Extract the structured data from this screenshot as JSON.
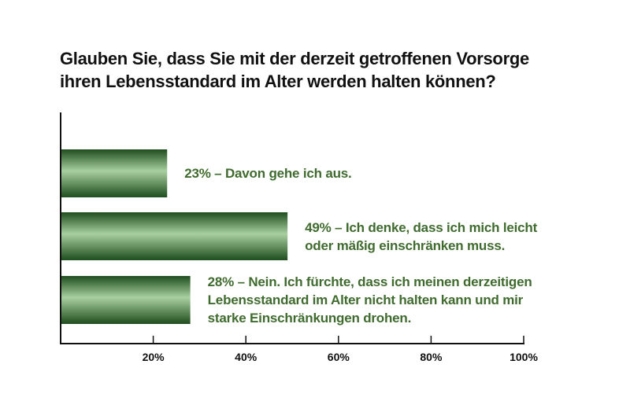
{
  "title_lines": [
    "Glauben Sie, dass Sie mit der derzeit getroffenen Vorsorge",
    "ihren Lebensstandard im Alter werden halten können?"
  ],
  "colors": {
    "bar_dark": "#1e4d1e",
    "bar_light": "#a9cf9f",
    "label_text": "#3f6b2e",
    "axis": "#111111",
    "title": "#111111"
  },
  "chart_data": {
    "type": "bar",
    "orientation": "horizontal",
    "title": "Glauben Sie, dass Sie mit der derzeit getroffenen Vorsorge ihren Lebensstandard im Alter werden halten können?",
    "xlim": [
      0,
      100
    ],
    "xticks": [
      "20%",
      "40%",
      "60%",
      "80%",
      "100%"
    ],
    "xtick_values": [
      20,
      40,
      60,
      80,
      100
    ],
    "grid": false,
    "values": [
      23,
      49,
      28
    ],
    "labels": [
      [
        "23% – Davon gehe ich aus."
      ],
      [
        "49% – Ich denke, dass ich mich leicht",
        "oder mäßig einschränken muss."
      ],
      [
        "28% – Nein. Ich fürchte, dass ich meinen derzeitigen",
        "Lebensstandard im Alter nicht halten kann und mir",
        "starke Einschränkungen drohen."
      ]
    ]
  }
}
